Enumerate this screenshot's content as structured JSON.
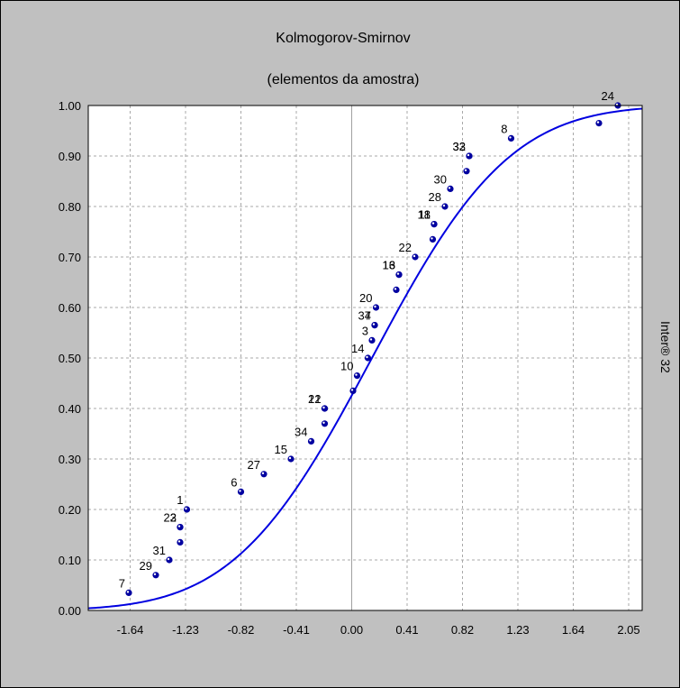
{
  "colors": {
    "panel_background": "#c0c0c0",
    "plot_background": "#ffffff",
    "grid": "#a8a8a8",
    "zero_line": "#a0a0a0",
    "curve": "#0000e0",
    "points": "#0000a0"
  },
  "chart_data": {
    "type": "scatter",
    "title": "Kolmogorov-Smirnov",
    "subtitle": "(elementos da amostra)",
    "side_label": "Inter® 32",
    "xlim": [
      -1.95,
      2.15
    ],
    "ylim": [
      0.0,
      1.0
    ],
    "x_ticks": [
      -1.64,
      -1.23,
      -0.82,
      -0.41,
      0.0,
      0.41,
      0.82,
      1.23,
      1.64,
      2.05
    ],
    "x_tick_labels": [
      "-1.64",
      "-1.23",
      "-0.82",
      "-0.41",
      "0.00",
      "0.41",
      "0.82",
      "1.23",
      "1.64",
      "2.05"
    ],
    "y_ticks": [
      0.0,
      0.1,
      0.2,
      0.3,
      0.4,
      0.5,
      0.6,
      0.7,
      0.8,
      0.9,
      1.0
    ],
    "y_tick_labels": [
      "0.00",
      "0.10",
      "0.20",
      "0.30",
      "0.40",
      "0.50",
      "0.60",
      "0.70",
      "0.80",
      "0.90",
      "1.00"
    ],
    "grid": true,
    "curve": {
      "kind": "normal_cdf",
      "mean": 0.15,
      "sd": 0.8
    },
    "points": [
      {
        "label": "7",
        "x": -1.65,
        "y": 0.035
      },
      {
        "label": "29",
        "x": -1.45,
        "y": 0.07
      },
      {
        "label": "31",
        "x": -1.35,
        "y": 0.1
      },
      {
        "label": "",
        "x": -1.27,
        "y": 0.135
      },
      {
        "label": "2",
        "x": -1.27,
        "y": 0.165
      },
      {
        "label": "23",
        "x": -1.27,
        "y": 0.165
      },
      {
        "label": "1",
        "x": -1.22,
        "y": 0.2
      },
      {
        "label": "6",
        "x": -0.82,
        "y": 0.235
      },
      {
        "label": "27",
        "x": -0.65,
        "y": 0.27
      },
      {
        "label": "15",
        "x": -0.45,
        "y": 0.3
      },
      {
        "label": "34",
        "x": -0.3,
        "y": 0.335
      },
      {
        "label": "",
        "x": -0.2,
        "y": 0.37
      },
      {
        "label": "21",
        "x": -0.2,
        "y": 0.4
      },
      {
        "label": "12",
        "x": -0.2,
        "y": 0.4
      },
      {
        "label": "",
        "x": 0.01,
        "y": 0.435
      },
      {
        "label": "10",
        "x": 0.04,
        "y": 0.465
      },
      {
        "label": "14",
        "x": 0.12,
        "y": 0.5
      },
      {
        "label": "3",
        "x": 0.15,
        "y": 0.535
      },
      {
        "label": "37",
        "x": 0.17,
        "y": 0.565
      },
      {
        "label": "4",
        "x": 0.17,
        "y": 0.565
      },
      {
        "label": "20",
        "x": 0.18,
        "y": 0.6
      },
      {
        "label": "",
        "x": 0.33,
        "y": 0.635
      },
      {
        "label": "16",
        "x": 0.35,
        "y": 0.665
      },
      {
        "label": "13",
        "x": 0.35,
        "y": 0.665
      },
      {
        "label": "22",
        "x": 0.47,
        "y": 0.7
      },
      {
        "label": "",
        "x": 0.6,
        "y": 0.735
      },
      {
        "label": "18",
        "x": 0.61,
        "y": 0.765
      },
      {
        "label": "11",
        "x": 0.61,
        "y": 0.765
      },
      {
        "label": "28",
        "x": 0.69,
        "y": 0.8
      },
      {
        "label": "30",
        "x": 0.73,
        "y": 0.835
      },
      {
        "label": "",
        "x": 0.85,
        "y": 0.87
      },
      {
        "label": "32",
        "x": 0.87,
        "y": 0.9
      },
      {
        "label": "33",
        "x": 0.87,
        "y": 0.9
      },
      {
        "label": "8",
        "x": 1.18,
        "y": 0.935
      },
      {
        "label": "",
        "x": 1.83,
        "y": 0.965
      },
      {
        "label": "24",
        "x": 1.97,
        "y": 1.0
      }
    ]
  }
}
